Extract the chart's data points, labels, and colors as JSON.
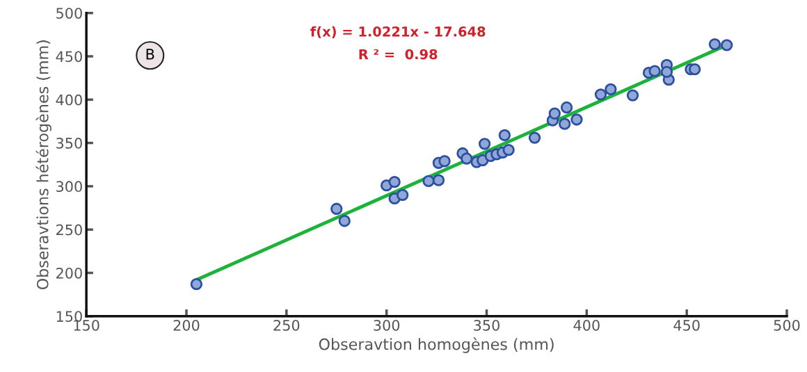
{
  "chart_data": {
    "type": "scatter",
    "xlabel": "Obseravtion homogènes (mm)",
    "ylabel": "Obseravtions hétérogènes (mm)",
    "annotations": [
      "B",
      "f(x) = 1.0221x - 17.648",
      "R ² =  0.98"
    ],
    "xlim": [
      150,
      500
    ],
    "xticks": [
      150,
      200,
      250,
      300,
      350,
      400,
      450,
      500
    ],
    "ylim": [
      150,
      500
    ],
    "yticks": [
      150,
      200,
      250,
      300,
      350,
      400,
      450,
      500
    ],
    "grid": false,
    "legend": false,
    "series": [
      {
        "color": "#8fa8d8",
        "marker": "circle",
        "x": [
          205,
          275,
          279,
          300,
          304,
          304,
          308,
          321,
          326,
          326,
          329,
          338,
          340,
          345,
          348,
          349,
          352,
          355,
          358,
          359,
          361,
          374,
          383,
          384,
          389,
          390,
          395,
          407,
          412,
          423,
          431,
          434,
          440,
          441,
          440,
          452,
          454,
          464,
          470
        ],
        "values": [
          187,
          274,
          260,
          301,
          305,
          286,
          290,
          306,
          307,
          327,
          329,
          338,
          332,
          328,
          330,
          349,
          335,
          337,
          339,
          359,
          342,
          356,
          376,
          384,
          372,
          391,
          377,
          406,
          412,
          405,
          431,
          433,
          440,
          423,
          432,
          435,
          435,
          464,
          463
        ]
      },
      {
        "type": "line",
        "color": "#1db33a",
        "marker": "none",
        "line_style": "solid",
        "x": [
          205,
          470
        ],
        "values": [
          192,
          463
        ]
      }
    ]
  }
}
